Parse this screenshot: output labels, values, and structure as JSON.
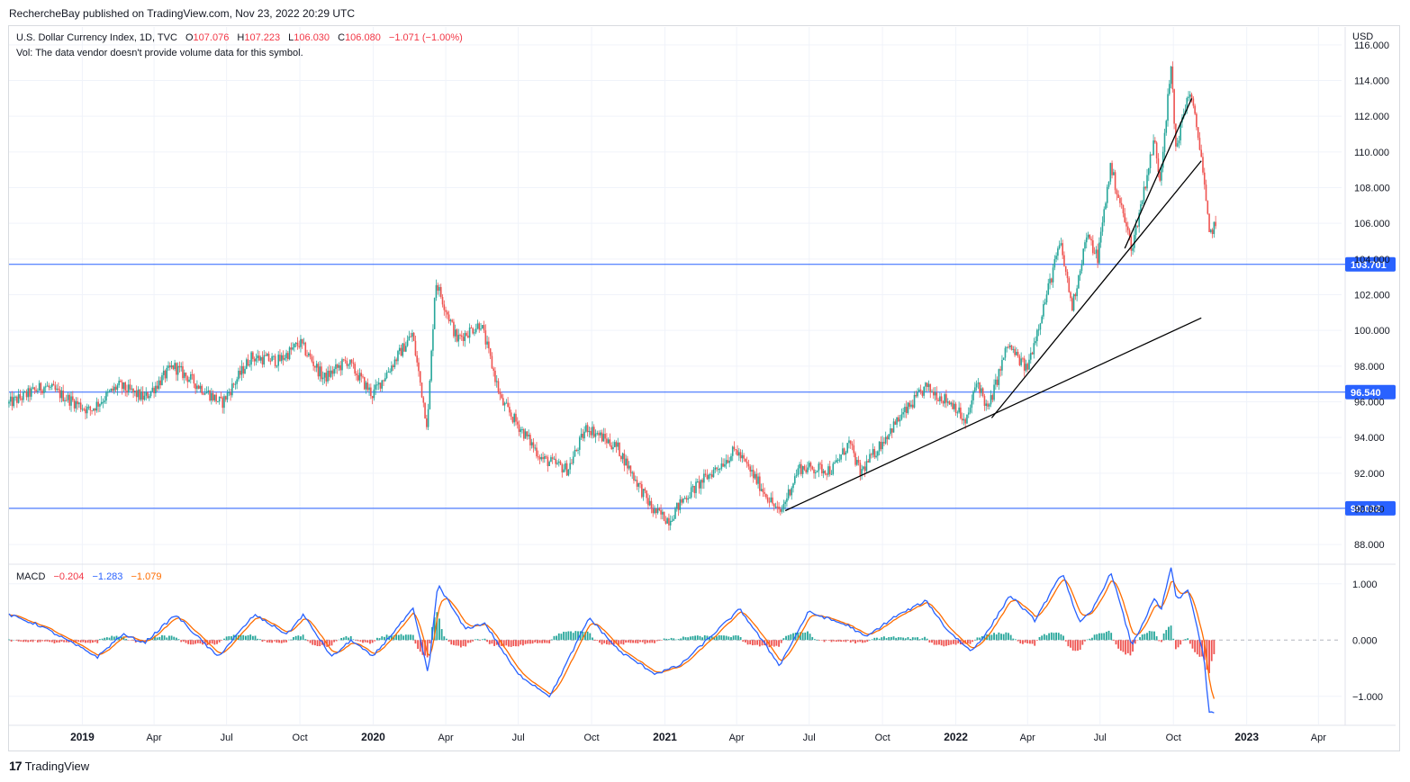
{
  "publication": "RechercheBay published on TradingView.com, Nov 23, 2022 20:29 UTC",
  "legend": {
    "symbol": "U.S. Dollar Currency Index, 1D, TVC",
    "o_label": "O",
    "o": "107.076",
    "h_label": "H",
    "h": "107.223",
    "l_label": "L",
    "l": "106.030",
    "c_label": "C",
    "c": "106.080",
    "change": "−1.071 (−1.00%)",
    "vol": "Vol: The data vendor doesn't provide volume data for this symbol.",
    "macd_name": "MACD",
    "macd_hist": "−0.204",
    "macd_line": "−1.283",
    "macd_signal": "−1.079"
  },
  "footer": {
    "logo": "17",
    "brand": "TradingView"
  },
  "colors": {
    "up": "#26a69a",
    "down": "#ef5350",
    "hline": "#2962ff",
    "macd": "#2962ff",
    "signal": "#ff6d00",
    "grid": "#f0f3fa"
  },
  "chart_data": [
    {
      "type": "candlestick",
      "title": "U.S. Dollar Currency Index, 1D, TVC",
      "currency_label": "USD",
      "y_ticks": [
        88,
        90,
        92,
        94,
        96,
        98,
        100,
        102,
        104,
        106,
        108,
        110,
        112,
        114,
        116
      ],
      "y_range": [
        87,
        117
      ],
      "x_range": [
        "2018-10-01",
        "2023-04-30"
      ],
      "x_ticks": [
        {
          "date": "2019-01-01",
          "label": "2019",
          "bold": true
        },
        {
          "date": "2019-04-01",
          "label": "Apr"
        },
        {
          "date": "2019-07-01",
          "label": "Jul"
        },
        {
          "date": "2019-10-01",
          "label": "Oct"
        },
        {
          "date": "2020-01-01",
          "label": "2020",
          "bold": true
        },
        {
          "date": "2020-04-01",
          "label": "Apr"
        },
        {
          "date": "2020-07-01",
          "label": "Jul"
        },
        {
          "date": "2020-10-01",
          "label": "Oct"
        },
        {
          "date": "2021-01-01",
          "label": "2021",
          "bold": true
        },
        {
          "date": "2021-04-01",
          "label": "Apr"
        },
        {
          "date": "2021-07-01",
          "label": "Jul"
        },
        {
          "date": "2021-10-01",
          "label": "Oct"
        },
        {
          "date": "2022-01-01",
          "label": "2022",
          "bold": true
        },
        {
          "date": "2022-04-01",
          "label": "Apr"
        },
        {
          "date": "2022-07-01",
          "label": "Jul"
        },
        {
          "date": "2022-10-01",
          "label": "Oct"
        },
        {
          "date": "2023-01-01",
          "label": "2023",
          "bold": true
        },
        {
          "date": "2023-04-01",
          "label": "Apr"
        }
      ],
      "price_path": [
        [
          "2018-10-01",
          95.9
        ],
        [
          "2018-11-15",
          96.9
        ],
        [
          "2019-01-10",
          95.5
        ],
        [
          "2019-02-15",
          96.9
        ],
        [
          "2019-03-20",
          96.2
        ],
        [
          "2019-04-25",
          98.0
        ],
        [
          "2019-06-25",
          95.9
        ],
        [
          "2019-07-31",
          98.5
        ],
        [
          "2019-09-05",
          98.3
        ],
        [
          "2019-10-01",
          99.3
        ],
        [
          "2019-10-31",
          97.3
        ],
        [
          "2019-11-29",
          98.3
        ],
        [
          "2019-12-31",
          96.4
        ],
        [
          "2020-02-19",
          99.8
        ],
        [
          "2020-03-09",
          94.6
        ],
        [
          "2020-03-19",
          102.8
        ],
        [
          "2020-04-15",
          99.5
        ],
        [
          "2020-05-15",
          100.4
        ],
        [
          "2020-06-10",
          96.0
        ],
        [
          "2020-07-31",
          92.8
        ],
        [
          "2020-09-01",
          92.2
        ],
        [
          "2020-09-25",
          94.6
        ],
        [
          "2020-11-03",
          93.4
        ],
        [
          "2020-12-17",
          89.9
        ],
        [
          "2021-01-06",
          89.4
        ],
        [
          "2021-01-25",
          90.6
        ],
        [
          "2021-03-31",
          93.3
        ],
        [
          "2021-05-25",
          89.7
        ],
        [
          "2021-06-18",
          92.3
        ],
        [
          "2021-07-30",
          92.2
        ],
        [
          "2021-08-20",
          93.7
        ],
        [
          "2021-09-03",
          92.0
        ],
        [
          "2021-10-12",
          94.5
        ],
        [
          "2021-11-24",
          96.8
        ],
        [
          "2021-12-31",
          95.8
        ],
        [
          "2022-01-13",
          94.7
        ],
        [
          "2022-01-28",
          97.2
        ],
        [
          "2022-02-10",
          95.5
        ],
        [
          "2022-03-07",
          99.2
        ],
        [
          "2022-03-31",
          97.8
        ],
        [
          "2022-05-12",
          104.9
        ],
        [
          "2022-05-27",
          101.3
        ],
        [
          "2022-06-14",
          105.3
        ],
        [
          "2022-06-28",
          104.1
        ],
        [
          "2022-07-14",
          109.2
        ],
        [
          "2022-08-10",
          104.6
        ],
        [
          "2022-09-07",
          110.7
        ],
        [
          "2022-09-14",
          108.5
        ],
        [
          "2022-09-28",
          114.7
        ],
        [
          "2022-10-04",
          110.2
        ],
        [
          "2022-10-21",
          113.5
        ],
        [
          "2022-11-04",
          110.2
        ],
        [
          "2022-11-15",
          105.3
        ],
        [
          "2022-11-23",
          106.08
        ]
      ],
      "horizontal_levels": [
        103.701,
        96.54,
        90.032
      ],
      "trendlines": [
        {
          "from": [
            "2021-06-01",
            89.9
          ],
          "to": [
            "2022-11-05",
            100.7
          ]
        },
        {
          "from": [
            "2022-02-15",
            95.1
          ],
          "to": [
            "2022-11-05",
            109.5
          ]
        },
        {
          "from": [
            "2022-08-01",
            104.6
          ],
          "to": [
            "2022-10-24",
            113.0
          ]
        }
      ]
    },
    {
      "type": "macd",
      "name": "MACD",
      "y_ticks": [
        1.0,
        0.0,
        -1.0
      ],
      "y_tick_labels": [
        "1.000",
        "0.000",
        "−1.000"
      ],
      "y_range": [
        -1.5,
        1.3
      ],
      "macd_path": [
        [
          "2018-10-01",
          0.45
        ],
        [
          "2018-11-10",
          0.25
        ],
        [
          "2019-01-20",
          -0.3
        ],
        [
          "2019-02-20",
          0.1
        ],
        [
          "2019-03-20",
          -0.05
        ],
        [
          "2019-04-28",
          0.45
        ],
        [
          "2019-06-20",
          -0.3
        ],
        [
          "2019-08-05",
          0.45
        ],
        [
          "2019-09-15",
          0.1
        ],
        [
          "2019-10-05",
          0.45
        ],
        [
          "2019-11-10",
          -0.3
        ],
        [
          "2019-12-05",
          0.0
        ],
        [
          "2019-12-31",
          -0.3
        ],
        [
          "2020-02-20",
          0.55
        ],
        [
          "2020-03-10",
          -0.6
        ],
        [
          "2020-03-22",
          1.0
        ],
        [
          "2020-04-25",
          0.2
        ],
        [
          "2020-05-20",
          0.3
        ],
        [
          "2020-06-30",
          -0.6
        ],
        [
          "2020-08-10",
          -1.0
        ],
        [
          "2020-09-28",
          0.4
        ],
        [
          "2020-11-05",
          -0.2
        ],
        [
          "2020-12-20",
          -0.6
        ],
        [
          "2021-01-20",
          -0.45
        ],
        [
          "2021-04-05",
          0.55
        ],
        [
          "2021-05-25",
          -0.45
        ],
        [
          "2021-06-30",
          0.5
        ],
        [
          "2021-08-20",
          0.25
        ],
        [
          "2021-09-10",
          0.05
        ],
        [
          "2021-10-15",
          0.4
        ],
        [
          "2021-11-25",
          0.7
        ],
        [
          "2021-12-20",
          0.2
        ],
        [
          "2022-01-20",
          -0.2
        ],
        [
          "2022-02-10",
          0.15
        ],
        [
          "2022-03-10",
          0.8
        ],
        [
          "2022-04-10",
          0.35
        ],
        [
          "2022-05-15",
          1.2
        ],
        [
          "2022-06-05",
          0.3
        ],
        [
          "2022-06-20",
          0.5
        ],
        [
          "2022-07-15",
          1.2
        ],
        [
          "2022-08-10",
          -0.1
        ],
        [
          "2022-09-08",
          0.75
        ],
        [
          "2022-09-15",
          0.5
        ],
        [
          "2022-09-28",
          1.3
        ],
        [
          "2022-10-05",
          0.7
        ],
        [
          "2022-10-20",
          0.9
        ],
        [
          "2022-11-08",
          -0.3
        ],
        [
          "2022-11-15",
          -1.3
        ],
        [
          "2022-11-23",
          -1.283
        ]
      ]
    }
  ]
}
